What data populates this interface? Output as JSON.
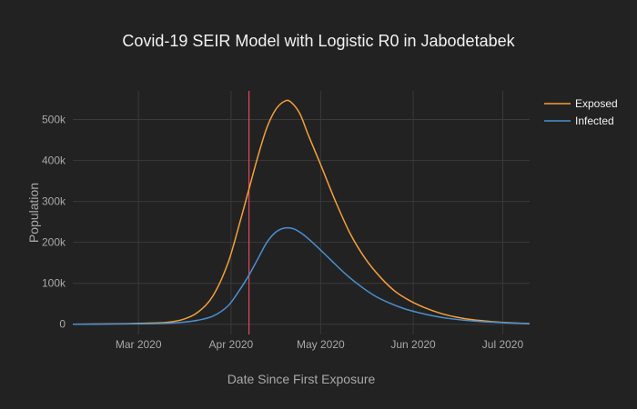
{
  "chart_data": {
    "type": "line",
    "title": "Covid-19 SEIR Model with Logistic R0 in Jabodetabek",
    "xlabel": "Date Since First Exposure",
    "ylabel": "Population",
    "x_ticks": [
      "Mar 2020",
      "Apr 2020",
      "May 2020",
      "Jun 2020",
      "Jul 2020"
    ],
    "x_tick_dates": [
      "2020-03-01",
      "2020-04-01",
      "2020-05-01",
      "2020-06-01",
      "2020-07-01"
    ],
    "y_ticks": [
      0,
      100000,
      200000,
      300000,
      400000,
      500000
    ],
    "y_tick_labels": [
      "0",
      "100k",
      "200k",
      "300k",
      "400k",
      "500k"
    ],
    "xlim": [
      "2020-02-08",
      "2020-07-10"
    ],
    "ylim": [
      -25000,
      570000
    ],
    "grid": true,
    "legend_position": "top-right",
    "vline": {
      "date": "2020-04-07",
      "color": "#e04a5a"
    },
    "series": [
      {
        "name": "Exposed",
        "color": "#f5a03a",
        "points": [
          [
            "2020-02-08",
            0
          ],
          [
            "2020-02-22",
            1000
          ],
          [
            "2020-03-06",
            3000
          ],
          [
            "2020-03-11",
            5000
          ],
          [
            "2020-03-16",
            12000
          ],
          [
            "2020-03-21",
            30000
          ],
          [
            "2020-03-26",
            70000
          ],
          [
            "2020-03-31",
            150000
          ],
          [
            "2020-04-04",
            250000
          ],
          [
            "2020-04-07",
            330000
          ],
          [
            "2020-04-10",
            410000
          ],
          [
            "2020-04-13",
            480000
          ],
          [
            "2020-04-16",
            525000
          ],
          [
            "2020-04-19",
            545000
          ],
          [
            "2020-04-21",
            543000
          ],
          [
            "2020-04-24",
            515000
          ],
          [
            "2020-04-27",
            460000
          ],
          [
            "2020-05-01",
            390000
          ],
          [
            "2020-05-06",
            300000
          ],
          [
            "2020-05-11",
            220000
          ],
          [
            "2020-05-16",
            160000
          ],
          [
            "2020-05-21",
            115000
          ],
          [
            "2020-05-26",
            80000
          ],
          [
            "2020-05-31",
            57000
          ],
          [
            "2020-06-05",
            40000
          ],
          [
            "2020-06-10",
            27000
          ],
          [
            "2020-06-15",
            18000
          ],
          [
            "2020-06-20",
            12000
          ],
          [
            "2020-06-25",
            8000
          ],
          [
            "2020-06-30",
            5000
          ],
          [
            "2020-07-05",
            3000
          ],
          [
            "2020-07-10",
            1500
          ]
        ]
      },
      {
        "name": "Infected",
        "color": "#4a8fd0",
        "points": [
          [
            "2020-02-08",
            0
          ],
          [
            "2020-02-22",
            500
          ],
          [
            "2020-03-06",
            1500
          ],
          [
            "2020-03-11",
            2500
          ],
          [
            "2020-03-16",
            5000
          ],
          [
            "2020-03-21",
            10000
          ],
          [
            "2020-03-26",
            20000
          ],
          [
            "2020-03-31",
            45000
          ],
          [
            "2020-04-04",
            85000
          ],
          [
            "2020-04-07",
            120000
          ],
          [
            "2020-04-10",
            160000
          ],
          [
            "2020-04-13",
            200000
          ],
          [
            "2020-04-16",
            225000
          ],
          [
            "2020-04-19",
            235000
          ],
          [
            "2020-04-22",
            233000
          ],
          [
            "2020-04-25",
            220000
          ],
          [
            "2020-04-29",
            195000
          ],
          [
            "2020-05-04",
            160000
          ],
          [
            "2020-05-09",
            125000
          ],
          [
            "2020-05-14",
            95000
          ],
          [
            "2020-05-19",
            70000
          ],
          [
            "2020-05-24",
            52000
          ],
          [
            "2020-05-29",
            38000
          ],
          [
            "2020-06-03",
            28000
          ],
          [
            "2020-06-08",
            20000
          ],
          [
            "2020-06-13",
            14000
          ],
          [
            "2020-06-18",
            10000
          ],
          [
            "2020-06-23",
            7000
          ],
          [
            "2020-06-28",
            5000
          ],
          [
            "2020-07-03",
            3000
          ],
          [
            "2020-07-10",
            1500
          ]
        ]
      }
    ]
  }
}
